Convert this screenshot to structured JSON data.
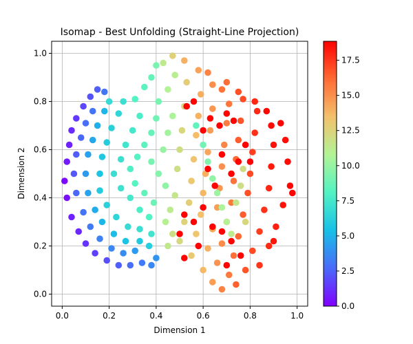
{
  "chart_data": {
    "type": "scatter",
    "title": "Isomap - Best Unfolding (Straight-Line Projection)",
    "xlabel": "Dimension 1",
    "ylabel": "Dimension 2",
    "xlim": [
      -0.045,
      1.045
    ],
    "ylim": [
      -0.05,
      1.05
    ],
    "xticks": [
      0.0,
      0.2,
      0.4,
      0.6,
      0.8,
      1.0
    ],
    "xtick_labels": [
      "0.0",
      "0.2",
      "0.4",
      "0.6",
      "0.8",
      "1.0"
    ],
    "yticks": [
      0.0,
      0.2,
      0.4,
      0.6,
      0.8,
      1.0
    ],
    "ytick_labels": [
      "0.0",
      "0.2",
      "0.4",
      "0.6",
      "0.8",
      "1.0"
    ],
    "grid": true,
    "colormap": "rainbow",
    "colorbar": {
      "min": 0.0,
      "max": 18.85,
      "ticks": [
        0.0,
        2.5,
        5.0,
        7.5,
        10.0,
        12.5,
        15.0,
        17.5
      ],
      "tick_labels": [
        "0.0",
        "2.5",
        "5.0",
        "7.5",
        "10.0",
        "12.5",
        "15.0",
        "17.5"
      ]
    },
    "color_stops": [
      "#8000ff",
      "#4a6afa",
      "#17c0e6",
      "#53f3c3",
      "#b2f396",
      "#f4c16c",
      "#ff6b35",
      "#ff0000"
    ],
    "point_color": "#1f77b4",
    "points": [
      [
        0.01,
        0.47,
        0.2
      ],
      [
        0.02,
        0.55,
        0.6
      ],
      [
        0.03,
        0.62,
        0.9
      ],
      [
        0.04,
        0.68,
        1.1
      ],
      [
        0.06,
        0.73,
        1.4
      ],
      [
        0.09,
        0.78,
        1.8
      ],
      [
        0.12,
        0.82,
        2.1
      ],
      [
        0.15,
        0.85,
        2.4
      ],
      [
        0.18,
        0.84,
        3.0
      ],
      [
        0.02,
        0.4,
        0.4
      ],
      [
        0.04,
        0.32,
        0.8
      ],
      [
        0.07,
        0.26,
        1.0
      ],
      [
        0.1,
        0.21,
        1.3
      ],
      [
        0.14,
        0.17,
        1.6
      ],
      [
        0.19,
        0.14,
        2.0
      ],
      [
        0.24,
        0.12,
        2.4
      ],
      [
        0.29,
        0.12,
        2.8
      ],
      [
        0.34,
        0.13,
        3.2
      ],
      [
        0.38,
        0.12,
        3.6
      ],
      [
        0.4,
        0.15,
        4.0
      ],
      [
        0.05,
        0.5,
        2.2
      ],
      [
        0.06,
        0.58,
        2.4
      ],
      [
        0.08,
        0.65,
        2.6
      ],
      [
        0.1,
        0.71,
        2.8
      ],
      [
        0.13,
        0.76,
        3.0
      ],
      [
        0.06,
        0.42,
        2.6
      ],
      [
        0.09,
        0.34,
        3.0
      ],
      [
        0.12,
        0.28,
        3.2
      ],
      [
        0.16,
        0.23,
        3.4
      ],
      [
        0.21,
        0.19,
        3.6
      ],
      [
        0.26,
        0.17,
        3.8
      ],
      [
        0.31,
        0.18,
        4.2
      ],
      [
        0.1,
        0.5,
        4.2
      ],
      [
        0.11,
        0.58,
        4.4
      ],
      [
        0.13,
        0.64,
        4.6
      ],
      [
        0.15,
        0.7,
        4.9
      ],
      [
        0.18,
        0.76,
        5.1
      ],
      [
        0.11,
        0.42,
        4.5
      ],
      [
        0.14,
        0.35,
        4.8
      ],
      [
        0.17,
        0.3,
        5.1
      ],
      [
        0.22,
        0.25,
        5.3
      ],
      [
        0.27,
        0.22,
        5.6
      ],
      [
        0.33,
        0.22,
        5.9
      ],
      [
        0.37,
        0.2,
        6.1
      ],
      [
        0.16,
        0.5,
        5.6
      ],
      [
        0.17,
        0.57,
        5.8
      ],
      [
        0.19,
        0.63,
        6.0
      ],
      [
        0.21,
        0.69,
        6.3
      ],
      [
        0.24,
        0.75,
        6.5
      ],
      [
        0.16,
        0.43,
        6.0
      ],
      [
        0.19,
        0.37,
        6.3
      ],
      [
        0.23,
        0.32,
        6.5
      ],
      [
        0.28,
        0.28,
        6.8
      ],
      [
        0.33,
        0.27,
        7.0
      ],
      [
        0.38,
        0.25,
        7.3
      ],
      [
        0.2,
        0.8,
        6.8
      ],
      [
        0.26,
        0.8,
        7.1
      ],
      [
        0.22,
        0.5,
        6.9
      ],
      [
        0.25,
        0.56,
        7.1
      ],
      [
        0.27,
        0.62,
        7.3
      ],
      [
        0.3,
        0.68,
        7.5
      ],
      [
        0.33,
        0.74,
        7.8
      ],
      [
        0.25,
        0.44,
        7.2
      ],
      [
        0.29,
        0.4,
        7.5
      ],
      [
        0.33,
        0.35,
        7.8
      ],
      [
        0.37,
        0.32,
        8.0
      ],
      [
        0.31,
        0.81,
        8.1
      ],
      [
        0.35,
        0.86,
        8.4
      ],
      [
        0.38,
        0.9,
        8.6
      ],
      [
        0.29,
        0.52,
        7.9
      ],
      [
        0.32,
        0.57,
        8.1
      ],
      [
        0.35,
        0.62,
        8.4
      ],
      [
        0.38,
        0.67,
        8.6
      ],
      [
        0.4,
        0.73,
        8.9
      ],
      [
        0.31,
        0.46,
        8.2
      ],
      [
        0.35,
        0.42,
        8.5
      ],
      [
        0.39,
        0.38,
        8.8
      ],
      [
        0.41,
        0.8,
        9.1
      ],
      [
        0.4,
        0.95,
        9.2
      ],
      [
        0.38,
        0.55,
        9.1
      ],
      [
        0.41,
        0.5,
        9.5
      ],
      [
        0.44,
        0.45,
        9.8
      ],
      [
        0.43,
        0.6,
        10.0
      ],
      [
        0.45,
        0.67,
        10.3
      ],
      [
        0.47,
        0.74,
        10.6
      ],
      [
        0.45,
        0.85,
        10.8
      ],
      [
        0.48,
        0.91,
        11.1
      ],
      [
        0.43,
        0.96,
        11.3
      ],
      [
        0.44,
        0.3,
        11.0
      ],
      [
        0.46,
        0.35,
        11.2
      ],
      [
        0.48,
        0.41,
        11.5
      ],
      [
        0.49,
        0.52,
        11.8
      ],
      [
        0.5,
        0.6,
        12.0
      ],
      [
        0.51,
        0.68,
        12.3
      ],
      [
        0.52,
        0.78,
        12.5
      ],
      [
        0.53,
        0.88,
        12.8
      ],
      [
        0.47,
        0.99,
        12.6
      ],
      [
        0.45,
        0.2,
        11.4
      ],
      [
        0.47,
        0.25,
        11.8
      ],
      [
        0.5,
        0.22,
        12.2
      ],
      [
        0.52,
        0.3,
        12.5
      ],
      [
        0.54,
        0.38,
        12.8
      ],
      [
        0.55,
        0.47,
        13.1
      ],
      [
        0.56,
        0.56,
        13.3
      ],
      [
        0.57,
        0.66,
        13.6
      ],
      [
        0.58,
        0.74,
        13.9
      ],
      [
        0.59,
        0.83,
        14.1
      ],
      [
        0.58,
        0.93,
        14.4
      ],
      [
        0.52,
        0.97,
        14.0
      ],
      [
        0.55,
        0.16,
        13.0
      ],
      [
        0.57,
        0.25,
        13.2
      ],
      [
        0.59,
        0.33,
        13.5
      ],
      [
        0.6,
        0.42,
        13.8
      ],
      [
        0.61,
        0.5,
        14.0
      ],
      [
        0.62,
        0.59,
        14.3
      ],
      [
        0.63,
        0.68,
        14.6
      ],
      [
        0.64,
        0.77,
        14.8
      ],
      [
        0.64,
        0.87,
        15.1
      ],
      [
        0.62,
        0.92,
        15.4
      ],
      [
        0.6,
        0.1,
        13.7
      ],
      [
        0.62,
        0.19,
        14.0
      ],
      [
        0.64,
        0.27,
        14.2
      ],
      [
        0.66,
        0.36,
        14.5
      ],
      [
        0.67,
        0.44,
        14.8
      ],
      [
        0.68,
        0.53,
        15.0
      ],
      [
        0.69,
        0.62,
        15.3
      ],
      [
        0.7,
        0.71,
        15.6
      ],
      [
        0.71,
        0.79,
        15.8
      ],
      [
        0.7,
        0.88,
        16.1
      ],
      [
        0.68,
        0.85,
        15.9
      ],
      [
        0.64,
        0.05,
        14.6
      ],
      [
        0.66,
        0.13,
        14.9
      ],
      [
        0.68,
        0.21,
        15.1
      ],
      [
        0.7,
        0.3,
        15.4
      ],
      [
        0.72,
        0.38,
        15.7
      ],
      [
        0.73,
        0.47,
        15.9
      ],
      [
        0.74,
        0.56,
        16.2
      ],
      [
        0.75,
        0.64,
        16.5
      ],
      [
        0.76,
        0.72,
        16.7
      ],
      [
        0.77,
        0.81,
        17.0
      ],
      [
        0.75,
        0.84,
        16.8
      ],
      [
        0.68,
        0.02,
        15.4
      ],
      [
        0.71,
        0.08,
        15.7
      ],
      [
        0.73,
        0.16,
        16.0
      ],
      [
        0.75,
        0.24,
        16.2
      ],
      [
        0.77,
        0.33,
        16.5
      ],
      [
        0.79,
        0.42,
        16.8
      ],
      [
        0.8,
        0.5,
        17.0
      ],
      [
        0.81,
        0.59,
        17.3
      ],
      [
        0.82,
        0.67,
        17.6
      ],
      [
        0.83,
        0.76,
        17.8
      ],
      [
        0.82,
        0.8,
        17.9
      ],
      [
        0.74,
        0.04,
        16.4
      ],
      [
        0.78,
        0.1,
        16.7
      ],
      [
        0.81,
        0.18,
        17.0
      ],
      [
        0.84,
        0.26,
        17.3
      ],
      [
        0.86,
        0.35,
        17.6
      ],
      [
        0.88,
        0.44,
        17.9
      ],
      [
        0.89,
        0.53,
        18.2
      ],
      [
        0.9,
        0.62,
        18.4
      ],
      [
        0.89,
        0.7,
        18.6
      ],
      [
        0.87,
        0.76,
        18.7
      ],
      [
        0.84,
        0.12,
        17.5
      ],
      [
        0.88,
        0.2,
        17.8
      ],
      [
        0.91,
        0.28,
        18.1
      ],
      [
        0.94,
        0.37,
        18.4
      ],
      [
        0.97,
        0.45,
        18.7
      ],
      [
        0.98,
        0.42,
        18.8
      ],
      [
        0.96,
        0.55,
        18.6
      ],
      [
        0.95,
        0.64,
        18.5
      ],
      [
        0.93,
        0.71,
        18.8
      ],
      [
        0.9,
        0.22,
        18.3
      ],
      [
        0.57,
        0.7,
        8.5
      ],
      [
        0.6,
        0.62,
        9.0
      ],
      [
        0.62,
        0.55,
        9.4
      ],
      [
        0.64,
        0.48,
        9.8
      ],
      [
        0.66,
        0.42,
        10.2
      ],
      [
        0.68,
        0.36,
        10.6
      ],
      [
        0.7,
        0.3,
        10.9
      ],
      [
        0.72,
        0.25,
        11.2
      ],
      [
        0.74,
        0.38,
        11.5
      ],
      [
        0.76,
        0.45,
        11.8
      ],
      [
        0.77,
        0.52,
        12.0
      ],
      [
        0.78,
        0.3,
        12.3
      ],
      [
        0.53,
        0.78,
        18.8
      ],
      [
        0.6,
        0.68,
        18.8
      ],
      [
        0.63,
        0.73,
        18.8
      ],
      [
        0.67,
        0.7,
        18.8
      ],
      [
        0.7,
        0.75,
        18.8
      ],
      [
        0.73,
        0.72,
        18.8
      ],
      [
        0.68,
        0.58,
        18.8
      ],
      [
        0.72,
        0.5,
        18.8
      ],
      [
        0.75,
        0.55,
        18.8
      ],
      [
        0.62,
        0.52,
        18.8
      ],
      [
        0.65,
        0.45,
        18.8
      ],
      [
        0.56,
        0.3,
        18.8
      ],
      [
        0.6,
        0.36,
        18.8
      ],
      [
        0.52,
        0.33,
        18.8
      ],
      [
        0.5,
        0.25,
        18.8
      ],
      [
        0.52,
        0.15,
        18.8
      ],
      [
        0.58,
        0.2,
        18.8
      ],
      [
        0.64,
        0.28,
        18.8
      ],
      [
        0.68,
        0.26,
        18.8
      ],
      [
        0.72,
        0.22,
        18.8
      ],
      [
        0.76,
        0.16,
        18.8
      ],
      [
        0.7,
        0.12,
        18.8
      ],
      [
        0.8,
        0.55,
        18.8
      ],
      [
        0.78,
        0.62,
        18.8
      ],
      [
        0.56,
        0.8,
        18.8
      ]
    ]
  }
}
